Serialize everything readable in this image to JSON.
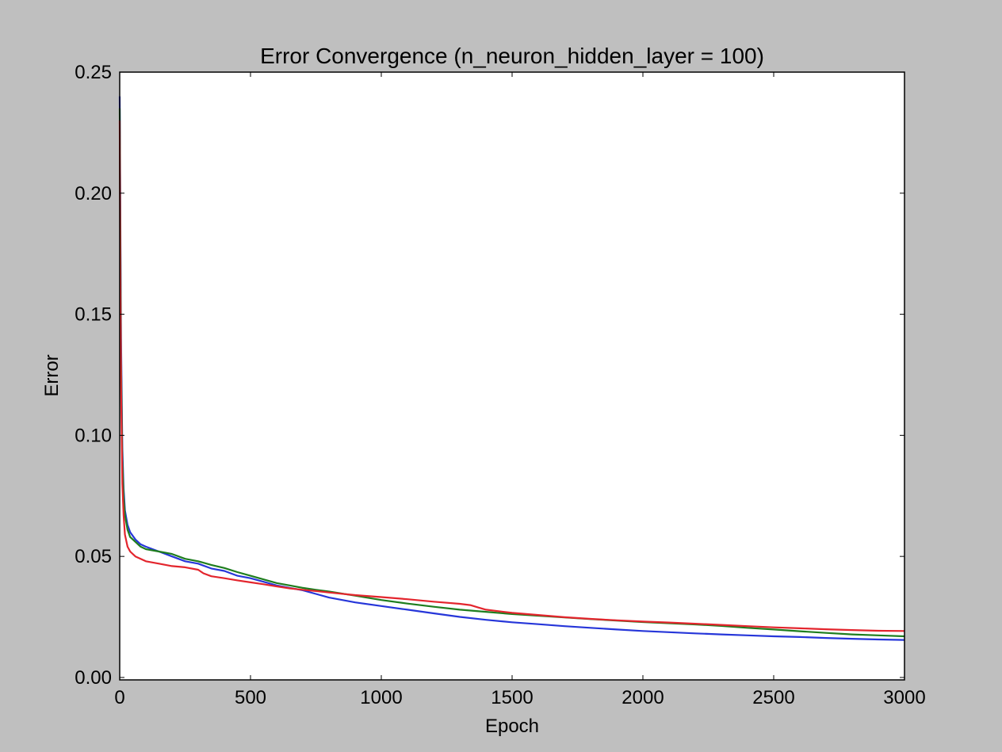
{
  "chart_data": {
    "type": "line",
    "title": "Error Convergence (n_neuron_hidden_layer = 100)",
    "xlabel": "Epoch",
    "ylabel": "Error",
    "xlim": [
      0,
      3000
    ],
    "ylim": [
      -0.001,
      0.25
    ],
    "x_ticks": [
      0,
      500,
      1000,
      1500,
      2000,
      2500,
      3000
    ],
    "x_tick_labels": [
      "0",
      "500",
      "1000",
      "1500",
      "2000",
      "2500",
      "3000"
    ],
    "y_ticks": [
      0.0,
      0.05,
      0.1,
      0.15,
      0.2,
      0.25
    ],
    "y_tick_labels": [
      "0.00",
      "0.05",
      "0.10",
      "0.15",
      "0.20",
      "0.25"
    ],
    "grid": false,
    "legend": "none",
    "colors": {
      "background": "#bfbfbf",
      "plot_area": "#ffffff",
      "axes": "#000000"
    },
    "series": [
      {
        "color": "#2636d9",
        "x": [
          0,
          2,
          5,
          10,
          15,
          20,
          30,
          40,
          60,
          80,
          100,
          150,
          200,
          250,
          300,
          350,
          400,
          450,
          500,
          550,
          600,
          650,
          700,
          750,
          800,
          900,
          1000,
          1100,
          1200,
          1300,
          1400,
          1500,
          1600,
          1700,
          1800,
          1900,
          2000,
          2100,
          2200,
          2300,
          2400,
          2500,
          2600,
          2700,
          2800,
          2900,
          3000
        ],
        "y": [
          0.24,
          0.2,
          0.14,
          0.095,
          0.078,
          0.069,
          0.063,
          0.06,
          0.057,
          0.055,
          0.054,
          0.052,
          0.05,
          0.048,
          0.047,
          0.045,
          0.044,
          0.042,
          0.041,
          0.0395,
          0.038,
          0.037,
          0.036,
          0.0345,
          0.033,
          0.031,
          0.0295,
          0.028,
          0.0265,
          0.025,
          0.0238,
          0.0228,
          0.022,
          0.0212,
          0.0205,
          0.0198,
          0.0192,
          0.0187,
          0.0182,
          0.0178,
          0.0174,
          0.017,
          0.0167,
          0.0163,
          0.016,
          0.0157,
          0.0155
        ]
      },
      {
        "color": "#1e7d1e",
        "x": [
          0,
          2,
          5,
          10,
          15,
          20,
          30,
          40,
          60,
          80,
          100,
          150,
          200,
          250,
          300,
          350,
          400,
          450,
          500,
          550,
          600,
          650,
          700,
          750,
          800,
          900,
          1000,
          1100,
          1200,
          1300,
          1400,
          1500,
          1600,
          1700,
          1800,
          1900,
          2000,
          2100,
          2200,
          2300,
          2400,
          2500,
          2600,
          2700,
          2800,
          2900,
          3000
        ],
        "y": [
          0.235,
          0.19,
          0.13,
          0.09,
          0.075,
          0.067,
          0.061,
          0.058,
          0.056,
          0.054,
          0.053,
          0.052,
          0.051,
          0.049,
          0.048,
          0.0465,
          0.0452,
          0.0435,
          0.042,
          0.0405,
          0.039,
          0.038,
          0.037,
          0.0362,
          0.0355,
          0.0338,
          0.032,
          0.0305,
          0.0292,
          0.028,
          0.0271,
          0.0262,
          0.0255,
          0.0248,
          0.0241,
          0.0235,
          0.0229,
          0.0224,
          0.0219,
          0.0213,
          0.0205,
          0.0198,
          0.0191,
          0.0184,
          0.0178,
          0.0174,
          0.017
        ]
      },
      {
        "color": "#e3252d",
        "x": [
          0,
          2,
          5,
          10,
          15,
          20,
          30,
          40,
          60,
          80,
          100,
          150,
          200,
          250,
          300,
          320,
          350,
          400,
          450,
          500,
          550,
          600,
          650,
          700,
          750,
          800,
          900,
          1000,
          1100,
          1200,
          1300,
          1340,
          1370,
          1400,
          1500,
          1600,
          1700,
          1800,
          1900,
          2000,
          2100,
          2200,
          2300,
          2400,
          2500,
          2600,
          2700,
          2800,
          2900,
          3000
        ],
        "y": [
          0.23,
          0.17,
          0.12,
          0.08,
          0.067,
          0.059,
          0.054,
          0.052,
          0.05,
          0.049,
          0.048,
          0.047,
          0.046,
          0.0455,
          0.0445,
          0.043,
          0.0418,
          0.041,
          0.0401,
          0.0393,
          0.0385,
          0.0376,
          0.0368,
          0.0362,
          0.0357,
          0.0351,
          0.034,
          0.0332,
          0.0323,
          0.0313,
          0.0304,
          0.0299,
          0.0289,
          0.028,
          0.0267,
          0.0258,
          0.0249,
          0.0242,
          0.0236,
          0.0231,
          0.0227,
          0.0222,
          0.0217,
          0.0212,
          0.0207,
          0.0203,
          0.0199,
          0.0196,
          0.0193,
          0.0192
        ]
      }
    ]
  }
}
